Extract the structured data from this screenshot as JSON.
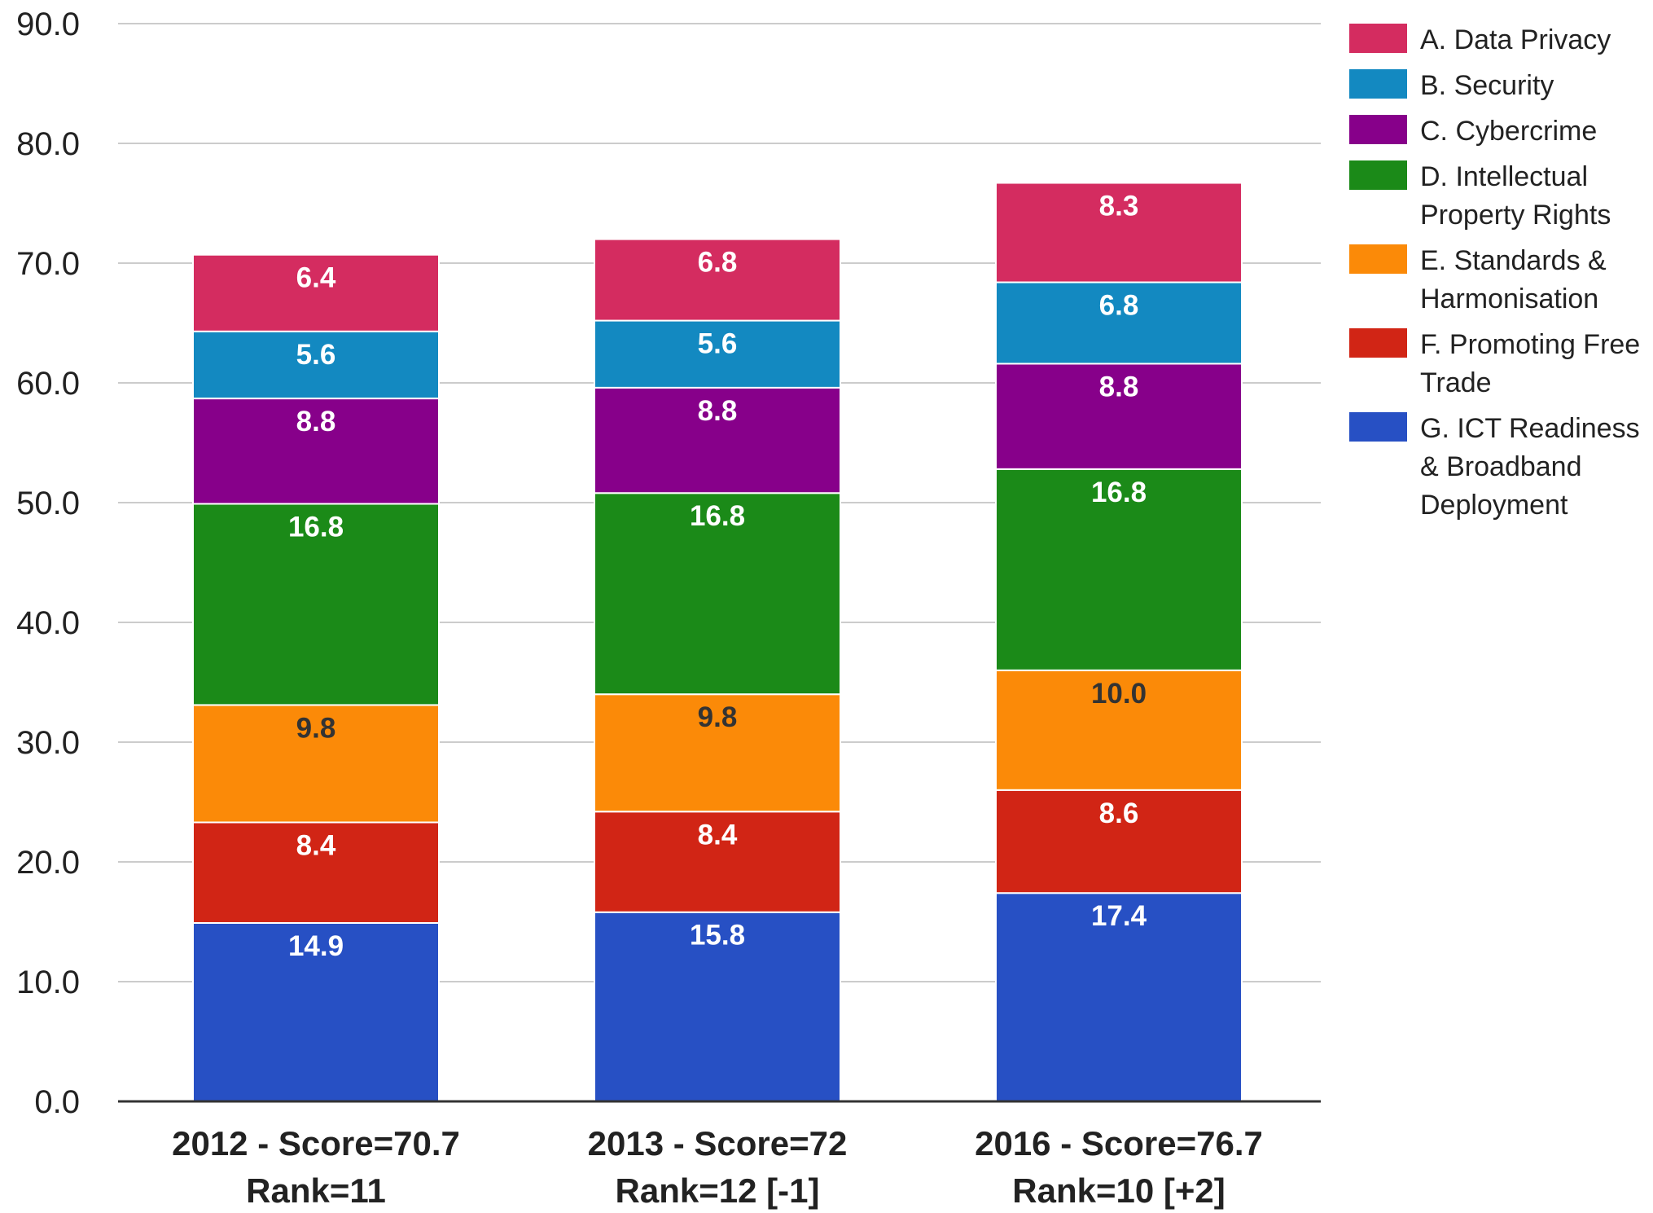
{
  "chart_data": {
    "type": "bar",
    "stacked": true,
    "title": "",
    "xlabel": "",
    "ylabel": "",
    "ylim": [
      0,
      90
    ],
    "y_ticks": [
      0,
      10,
      20,
      30,
      40,
      50,
      60,
      70,
      80,
      90
    ],
    "y_tick_labels": [
      "0.0",
      "10.0",
      "20.0",
      "30.0",
      "40.0",
      "50.0",
      "60.0",
      "70.0",
      "80.0",
      "90.0"
    ],
    "grid": true,
    "legend_position": "right",
    "categories": [
      [
        "2012 - Score=70.7",
        "Rank=11"
      ],
      [
        "2013 - Score=72",
        "Rank=12 [-1]"
      ],
      [
        "2016 - Score=76.7",
        "Rank=10 [+2]"
      ]
    ],
    "series": [
      {
        "name": "G. ICT Readiness & Broadband Deployment",
        "legend_lines": [
          "G. ICT Readiness",
          "& Broadband",
          "Deployment"
        ],
        "color": "#2750c4",
        "label_color": "#ffffff",
        "values": [
          14.9,
          15.8,
          17.4
        ]
      },
      {
        "name": "F. Promoting Free Trade",
        "legend_lines": [
          "F. Promoting Free",
          "Trade"
        ],
        "color": "#d12515",
        "label_color": "#ffffff",
        "values": [
          8.4,
          8.4,
          8.6
        ]
      },
      {
        "name": "E. Standards & Harmonisation",
        "legend_lines": [
          "E. Standards &",
          "Harmonisation"
        ],
        "color": "#fb8a08",
        "label_color": "#333333",
        "values": [
          9.8,
          9.8,
          10.0
        ]
      },
      {
        "name": "D. Intellectual Property Rights",
        "legend_lines": [
          "D. Intellectual",
          "Property Rights"
        ],
        "color": "#1b8a18",
        "label_color": "#ffffff",
        "values": [
          16.8,
          16.8,
          16.8
        ]
      },
      {
        "name": "C. Cybercrime",
        "legend_lines": [
          "C. Cybercrime"
        ],
        "color": "#87008a",
        "label_color": "#ffffff",
        "values": [
          8.8,
          8.8,
          8.8
        ]
      },
      {
        "name": "B. Security",
        "legend_lines": [
          "B. Security"
        ],
        "color": "#1389c1",
        "label_color": "#ffffff",
        "values": [
          5.6,
          5.6,
          6.8
        ]
      },
      {
        "name": "A. Data Privacy",
        "legend_lines": [
          "A. Data Privacy"
        ],
        "color": "#d42c60",
        "label_color": "#ffffff",
        "values": [
          6.4,
          6.8,
          8.3
        ]
      }
    ],
    "data_labels": [
      [
        "14.9",
        "15.8",
        "17.4"
      ],
      [
        "8.4",
        "8.4",
        "8.6"
      ],
      [
        "9.8",
        "9.8",
        "10.0"
      ],
      [
        "16.8",
        "16.8",
        "16.8"
      ],
      [
        "8.8",
        "8.8",
        "8.8"
      ],
      [
        "5.6",
        "5.6",
        "6.8"
      ],
      [
        "6.4",
        "6.8",
        "8.3"
      ]
    ]
  }
}
